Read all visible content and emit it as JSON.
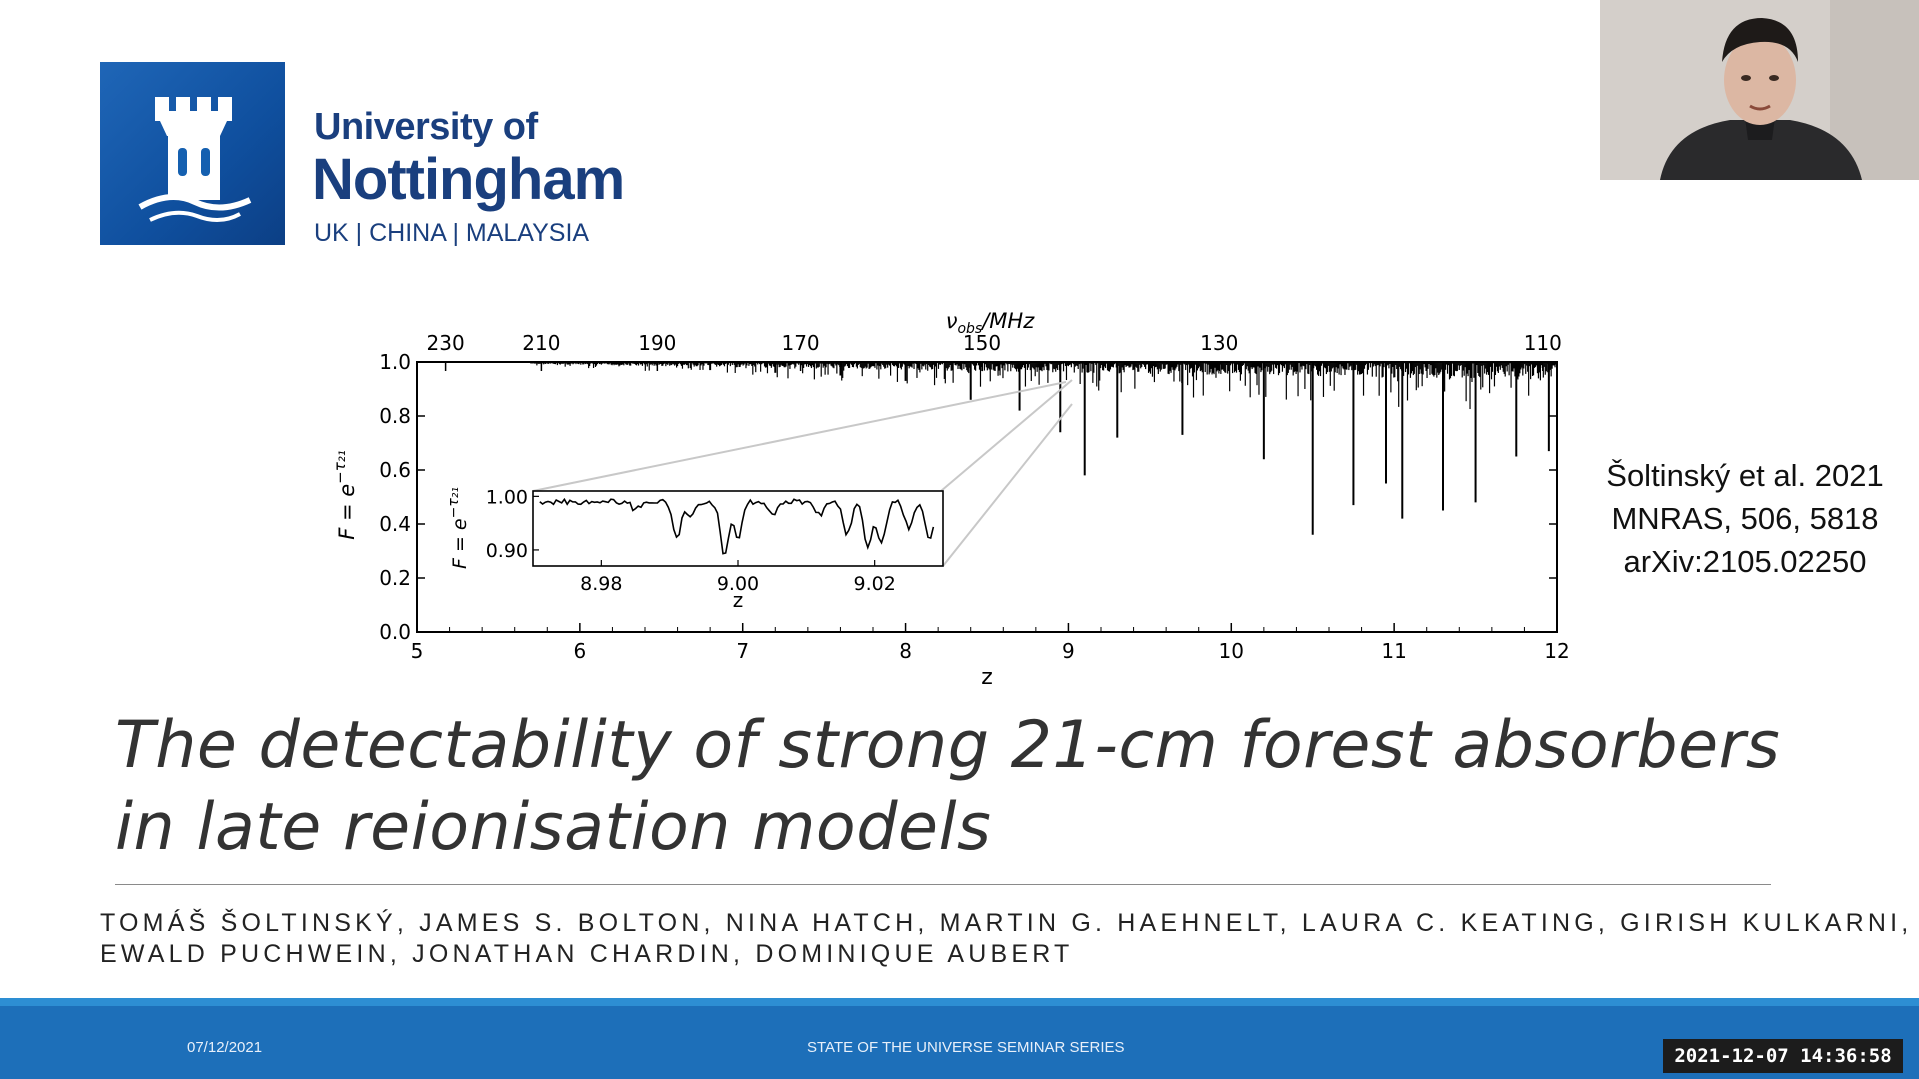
{
  "logo": {
    "line1": "University of",
    "line2": "Nottingham",
    "line3": "UK | CHINA | MALAYSIA"
  },
  "webcam": {
    "icon": "presenter-video-icon"
  },
  "chart_data": {
    "type": "line",
    "title": "",
    "top_axis_label": "ν_obs/MHz",
    "top_axis_ticks": [
      "230",
      "210",
      "190",
      "170",
      "150",
      "130",
      "110"
    ],
    "xlabel": "z",
    "ylabel": "F = e^−τ₂₁",
    "xlim": [
      5,
      12
    ],
    "ylim": [
      0.0,
      1.0
    ],
    "x_ticks": [
      "5",
      "6",
      "7",
      "8",
      "9",
      "10",
      "11",
      "12"
    ],
    "y_ticks": [
      "0.0",
      "0.2",
      "0.4",
      "0.6",
      "0.8",
      "1.0"
    ],
    "inset": {
      "xlabel": "z",
      "ylabel": "F = e^−τ₂₁",
      "xlim": [
        8.97,
        9.03
      ],
      "ylim": [
        0.87,
        1.01
      ],
      "x_ticks": [
        "8.98",
        "9.00",
        "9.02"
      ],
      "y_ticks": [
        "1.00",
        "0.90"
      ]
    },
    "absorbers": [
      {
        "z": 6.8,
        "F": 0.97
      },
      {
        "z": 7.2,
        "F": 0.96
      },
      {
        "z": 7.6,
        "F": 0.95
      },
      {
        "z": 8.0,
        "F": 0.93
      },
      {
        "z": 8.4,
        "F": 0.86
      },
      {
        "z": 8.7,
        "F": 0.82
      },
      {
        "z": 8.95,
        "F": 0.74
      },
      {
        "z": 9.1,
        "F": 0.58
      },
      {
        "z": 9.3,
        "F": 0.72
      },
      {
        "z": 9.7,
        "F": 0.73
      },
      {
        "z": 10.2,
        "F": 0.64
      },
      {
        "z": 10.5,
        "F": 0.36
      },
      {
        "z": 10.75,
        "F": 0.47
      },
      {
        "z": 10.95,
        "F": 0.55
      },
      {
        "z": 11.05,
        "F": 0.42
      },
      {
        "z": 11.3,
        "F": 0.45
      },
      {
        "z": 11.5,
        "F": 0.48
      },
      {
        "z": 11.75,
        "F": 0.65
      },
      {
        "z": 11.95,
        "F": 0.67
      }
    ]
  },
  "citation": {
    "line1": "Šoltinský et al. 2021",
    "line2": "MNRAS, 506, 5818",
    "line3": "arXiv:2105.02250"
  },
  "title": {
    "line1": "The detectability of strong 21-cm forest absorbers",
    "line2": "in late reionisation models"
  },
  "authors": {
    "line1": "TOMÁŠ ŠOLTINSKÝ, JAMES S. BOLTON, NINA HATCH, MARTIN G. HAEHNELT, LAURA C. KEATING, GIRISH KULKARNI,",
    "line2": "EWALD PUCHWEIN, JONATHAN CHARDIN, DOMINIQUE AUBERT"
  },
  "footer": {
    "date": "07/12/2021",
    "series": "STATE OF THE UNIVERSE SEMINAR SERIES",
    "timestamp": "2021-12-07  14:36:58"
  },
  "colors": {
    "brand_blue": "#1a3f7e",
    "footer_blue": "#1d6fb9",
    "footer_stripe": "#2d8ed3"
  }
}
